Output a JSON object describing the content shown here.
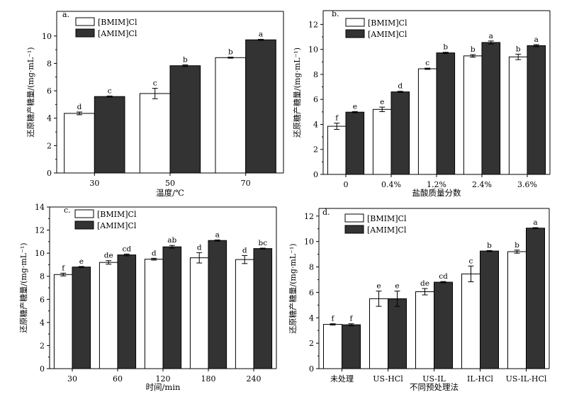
{
  "chart_data": [
    {
      "type": "bar",
      "panel_label": "a.",
      "categories": [
        "30",
        "50",
        "70"
      ],
      "series": [
        {
          "name": "[BMIM]Cl",
          "color": "#ffffff",
          "values": [
            4.35,
            5.8,
            8.42
          ],
          "errors": [
            0.1,
            0.38,
            0.04
          ],
          "letters": [
            "d",
            "c",
            "b"
          ]
        },
        {
          "name": "[AMIM]Cl",
          "color": "#333333",
          "values": [
            5.58,
            7.83,
            9.72
          ],
          "errors": [
            0.04,
            0.06,
            0.04
          ],
          "letters": [
            "c",
            "b",
            "a"
          ]
        }
      ],
      "xlabel": "温度/℃",
      "ylabel": "还原糖产糖量/(mg·mL⁻¹)",
      "ylim": [
        0,
        11.8
      ],
      "yticks": [
        0,
        2,
        4,
        6,
        8,
        10
      ]
    },
    {
      "type": "bar",
      "panel_label": "b.",
      "categories": [
        "0",
        "0.4%",
        "1.2%",
        "2.4%",
        "3.6%"
      ],
      "series": [
        {
          "name": "[BMIM]Cl",
          "color": "#ffffff",
          "values": [
            3.85,
            5.2,
            8.45,
            9.48,
            9.4
          ],
          "errors": [
            0.25,
            0.18,
            0.05,
            0.1,
            0.22
          ],
          "letters": [
            "f",
            "e",
            "c",
            "b",
            "b"
          ]
        },
        {
          "name": "[AMIM]Cl",
          "color": "#333333",
          "values": [
            4.98,
            6.6,
            9.72,
            10.55,
            10.3
          ],
          "errors": [
            0.05,
            0.05,
            0.05,
            0.12,
            0.08
          ],
          "letters": [
            "e",
            "d",
            "b",
            "a",
            "a"
          ]
        }
      ],
      "xlabel": "盐酸质量分数",
      "ylabel": "还原糖产糖量/(mg·mL⁻¹)",
      "ylim": [
        0,
        13.1
      ],
      "yticks": [
        0,
        2,
        4,
        6,
        8,
        10,
        12
      ]
    },
    {
      "type": "bar",
      "panel_label": "c.",
      "categories": [
        "30",
        "60",
        "120",
        "180",
        "240"
      ],
      "series": [
        {
          "name": "[BMIM]Cl",
          "color": "#ffffff",
          "values": [
            8.15,
            9.2,
            9.48,
            9.6,
            9.45
          ],
          "errors": [
            0.12,
            0.15,
            0.08,
            0.45,
            0.35
          ],
          "letters": [
            "f",
            "de",
            "d",
            "d",
            "d"
          ]
        },
        {
          "name": "[AMIM]Cl",
          "color": "#333333",
          "values": [
            8.8,
            9.85,
            10.55,
            11.1,
            10.4
          ],
          "errors": [
            0.05,
            0.08,
            0.12,
            0.05,
            0.04
          ],
          "letters": [
            "e",
            "cd",
            "ab",
            "a",
            "bc"
          ]
        }
      ],
      "xlabel": "时间/min",
      "ylabel": "还原糖产糖量/(mg·mL⁻¹)",
      "ylim": [
        0,
        14
      ],
      "yticks": [
        0,
        2,
        4,
        6,
        8,
        10,
        12,
        14
      ]
    },
    {
      "type": "bar",
      "panel_label": "d.",
      "categories": [
        "未处理",
        "US-HCl",
        "US-IL",
        "IL-HCl",
        "US-IL-HCl"
      ],
      "series": [
        {
          "name": "[BMIM]Cl",
          "color": "#ffffff",
          "values": [
            3.48,
            5.5,
            6.05,
            7.45,
            9.2
          ],
          "errors": [
            0.05,
            0.6,
            0.25,
            0.62,
            0.12
          ],
          "letters": [
            "f",
            "e",
            "de",
            "c",
            "b"
          ]
        },
        {
          "name": "[AMIM]Cl",
          "color": "#333333",
          "values": [
            3.45,
            5.5,
            6.8,
            9.25,
            11.05
          ],
          "errors": [
            0.08,
            0.6,
            0.05,
            0.04,
            0.04
          ],
          "letters": [
            "f",
            "e",
            "cd",
            "b",
            "a"
          ]
        }
      ],
      "xlabel": "不同预处理法",
      "ylabel": "还原糖产糖量/(mg·mL⁻¹)",
      "ylim": [
        0,
        12.6
      ],
      "yticks": [
        0,
        2,
        4,
        6,
        8,
        10,
        12
      ]
    }
  ]
}
